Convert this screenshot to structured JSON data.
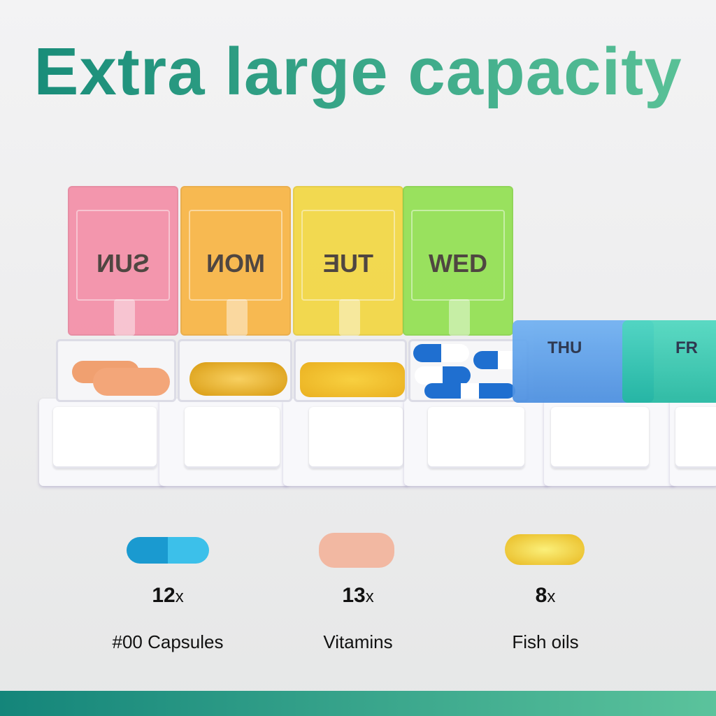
{
  "title": "Extra large capacity",
  "organizer": {
    "lids": [
      {
        "label": "SUN",
        "color": "#f48aa4",
        "mirrored": true
      },
      {
        "label": "MON",
        "color": "#f9b23c",
        "mirrored": true
      },
      {
        "label": "TUE",
        "color": "#f3d63a",
        "mirrored": true
      },
      {
        "label": "WED",
        "color": "#8ee04a",
        "mirrored": false
      }
    ],
    "closed_lids": [
      {
        "label": "THU",
        "color": "#5aa0ec"
      },
      {
        "label": "FR",
        "color": "#2ec9b0"
      }
    ]
  },
  "items": [
    {
      "count": "12",
      "unit": "x",
      "name": "#00 Capsules",
      "icon": "capsule-icon"
    },
    {
      "count": "13",
      "unit": "x",
      "name": "Vitamins",
      "icon": "tablet-icon"
    },
    {
      "count": "8",
      "unit": "x",
      "name": "Fish oils",
      "icon": "softgel-icon"
    }
  ],
  "colors": {
    "title_start": "#168a78",
    "title_end": "#5cc398",
    "bar_start": "#14857a",
    "bar_end": "#5bc39c"
  }
}
